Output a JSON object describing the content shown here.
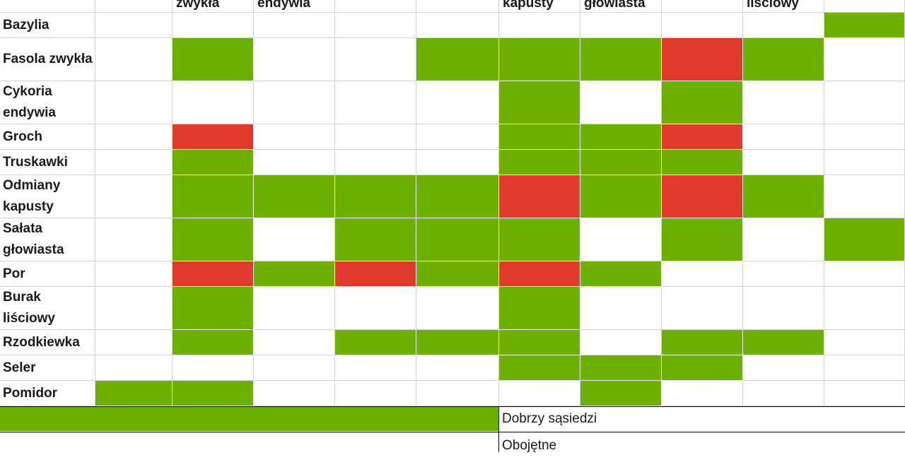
{
  "colors": {
    "good": "#6eb000",
    "bad": "#e03a2c",
    "neutral": "#ffffff"
  },
  "column_headers": [
    "",
    "zwykła",
    "endywia",
    "",
    "",
    "kapusty",
    "głowiasta",
    "",
    "liściowy",
    ""
  ],
  "rows": [
    {
      "label": "Bazylia",
      "cells": [
        "",
        "",
        "",
        "",
        "",
        "",
        "",
        "",
        "",
        "good"
      ]
    },
    {
      "label": "Fasola zwykła",
      "cells": [
        "",
        "good",
        "",
        "",
        "good",
        "good",
        "good",
        "bad",
        "good",
        ""
      ]
    },
    {
      "label": "Cykoria endywia",
      "cells": [
        "",
        "",
        "",
        "",
        "",
        "good",
        "",
        "good",
        "",
        ""
      ]
    },
    {
      "label": "Groch",
      "cells": [
        "",
        "bad",
        "",
        "",
        "",
        "good",
        "good",
        "bad",
        "",
        ""
      ]
    },
    {
      "label": "Truskawki",
      "cells": [
        "",
        "good",
        "",
        "",
        "",
        "good",
        "good",
        "good",
        "",
        ""
      ]
    },
    {
      "label": "Odmiany kapusty",
      "cells": [
        "",
        "good",
        "good",
        "good",
        "good",
        "bad",
        "good",
        "bad",
        "good",
        ""
      ]
    },
    {
      "label": "Sałata głowiasta",
      "cells": [
        "",
        "good",
        "",
        "good",
        "good",
        "good",
        "",
        "good",
        "",
        "good"
      ]
    },
    {
      "label": "Por",
      "cells": [
        "",
        "bad",
        "good",
        "bad",
        "good",
        "bad",
        "good",
        "",
        "",
        ""
      ]
    },
    {
      "label": "Burak liściowy",
      "cells": [
        "",
        "good",
        "",
        "",
        "",
        "good",
        "",
        "",
        "",
        ""
      ]
    },
    {
      "label": "Rzodkiewka",
      "cells": [
        "",
        "good",
        "",
        "good",
        "good",
        "good",
        "",
        "good",
        "good",
        ""
      ]
    },
    {
      "label": "Seler",
      "cells": [
        "",
        "",
        "",
        "",
        "",
        "good",
        "good",
        "good",
        "",
        ""
      ]
    },
    {
      "label": "Pomidor",
      "cells": [
        "good",
        "good",
        "",
        "",
        "",
        "",
        "good",
        "",
        "",
        ""
      ]
    }
  ],
  "legend": [
    {
      "swatch": "good",
      "text": "Dobrzy sąsiedzi"
    },
    {
      "swatch": "neutral",
      "text": "Obojętne"
    }
  ]
}
